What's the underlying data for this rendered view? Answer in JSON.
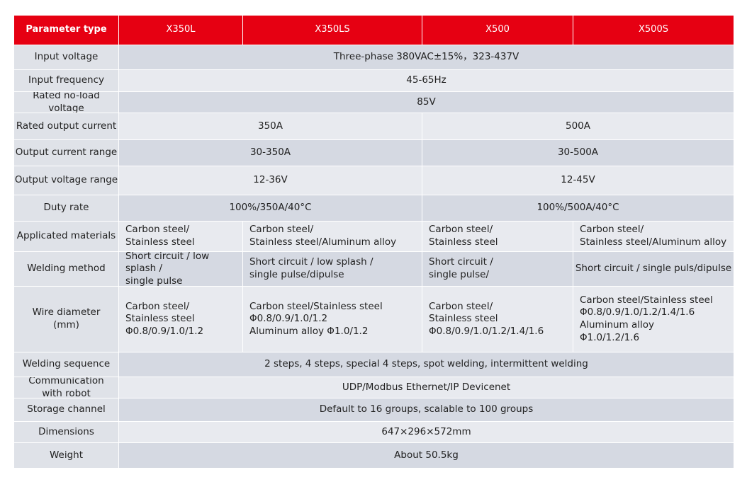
{
  "table": {
    "header": [
      "Parameter type",
      "X350L",
      "X350LS",
      "X500",
      "X500S"
    ],
    "rows": [
      [
        "Input voltage",
        "Three-phase 380VAC±15%，323-437V"
      ],
      [
        "Input frequency",
        "45-65Hz"
      ],
      [
        "Rated no-load voltage",
        "85V"
      ],
      [
        "Rated output current",
        "350A",
        "500A"
      ],
      [
        "Output current range",
        "30-350A",
        "30-500A"
      ],
      [
        "Output voltage range",
        "12-36V",
        "12-45V"
      ],
      [
        "Duty rate",
        "100%/350A/40°C",
        "100%/500A/40°C"
      ],
      [
        "Applicated  materials",
        "Carbon steel/\nStainless steel",
        "Carbon steel/\nStainless steel/Aluminum alloy",
        "Carbon steel/\nStainless steel",
        "Carbon steel/\nStainless steel/Aluminum alloy"
      ],
      [
        "Welding method",
        "Short circuit / low splash /\nsingle pulse",
        "Short circuit / low splash /\nsingle pulse/dipulse",
        "Short circuit /\nsingle pulse/",
        "Short circuit / single puls/dipulse"
      ],
      [
        "Wire diameter\n(mm)",
        "Carbon steel/\nStainless steel\nΦ0.8/0.9/1.0/1.2",
        "Carbon steel/Stainless steel\nΦ0.8/0.9/1.0/1.2\nAluminum alloy Φ1.0/1.2",
        "Carbon steel/\nStainless steel\nΦ0.8/0.9/1.0/1.2/1.4/1.6",
        "Carbon steel/Stainless steel\nΦ0.8/0.9/1.0/1.2/1.4/1.6\nAluminum alloy\nΦ1.0/1.2/1.6"
      ],
      [
        "Welding sequence",
        "2 steps, 4 steps, special 4 steps, spot welding, intermittent welding"
      ],
      [
        "Communication\nwith robot",
        "UDP/Modbus   Ethernet/IP   Devicenet"
      ],
      [
        "Storage channel",
        "Default to 16 groups, scalable to 100 groups"
      ],
      [
        "Dimensions",
        "647×296×572mm"
      ],
      [
        "Weight",
        "About 50.5kg"
      ]
    ]
  }
}
